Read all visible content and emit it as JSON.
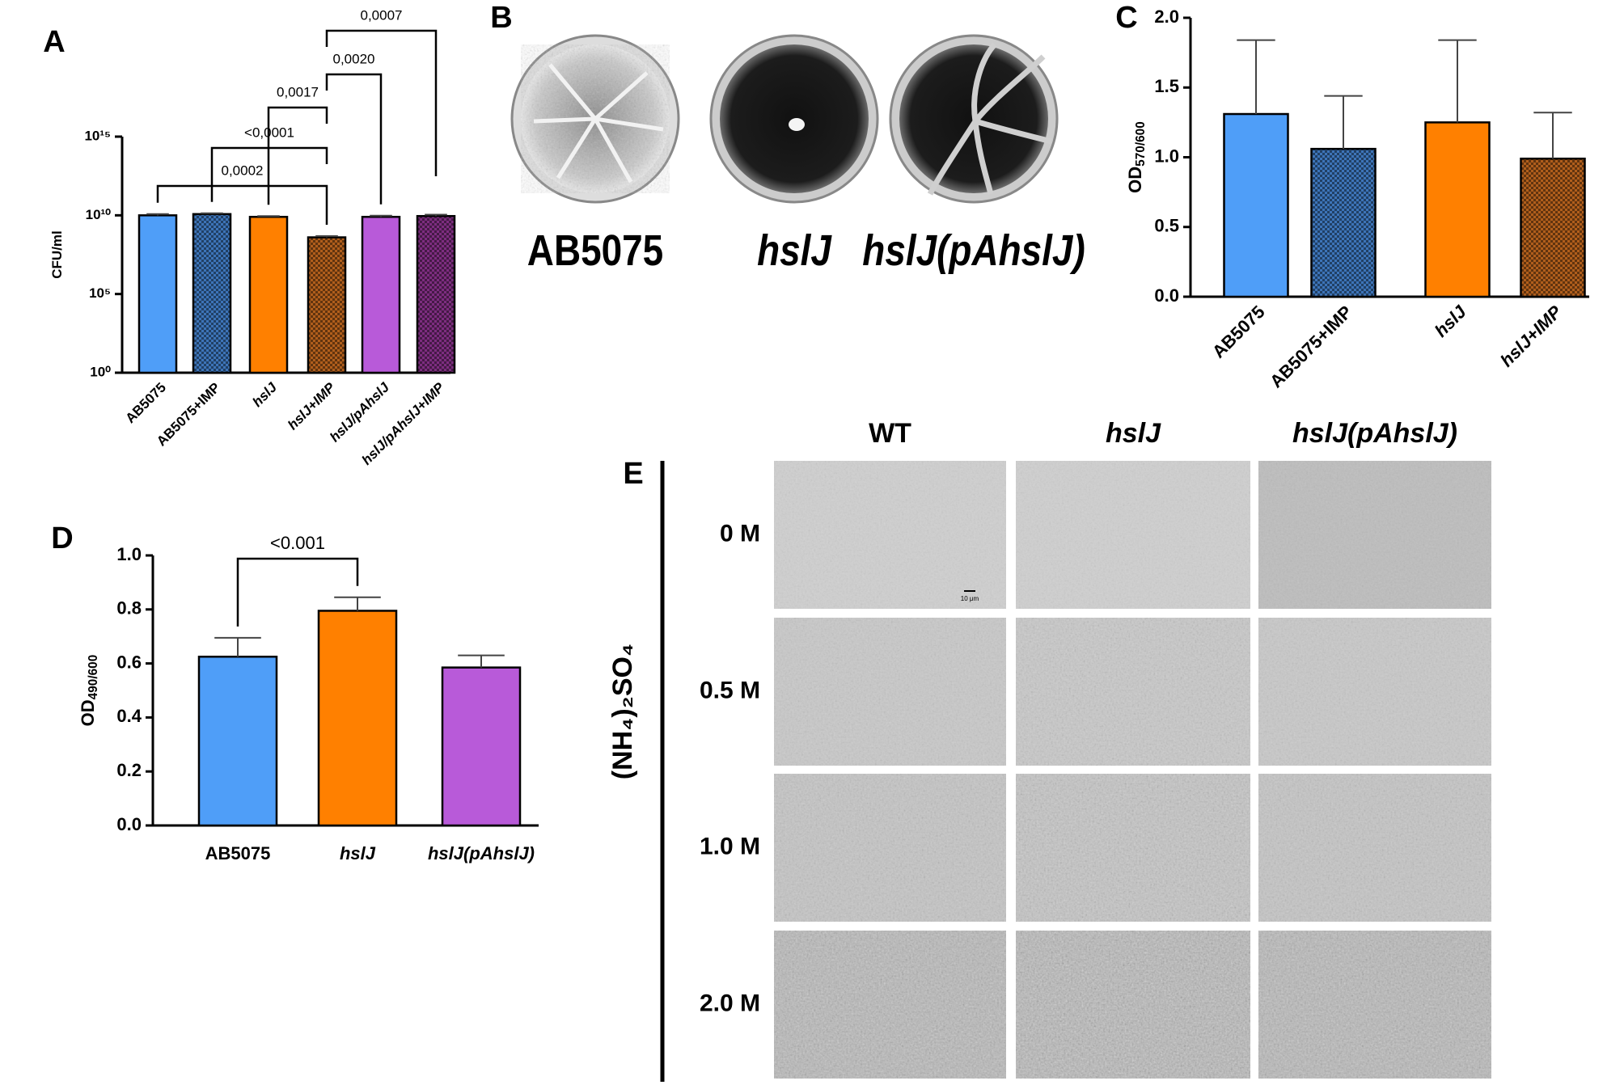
{
  "chart_data": [
    {
      "type": "bar",
      "panel": "A",
      "ylabel": "CFU/ml",
      "log_scale": true,
      "categories": [
        "AB5075",
        "AB5075+IMP",
        "hslJ",
        "hslJ+IMP",
        "hslJ/pAhslJ",
        "hslJ/pAhslJ+IMP"
      ],
      "values": [
        10000000000,
        12000000000,
        8000000000,
        400000000,
        8000000000,
        9000000000
      ],
      "errors": [
        2000000000,
        1500000000,
        1000000000,
        80000000,
        1500000000,
        2000000000
      ],
      "colors": [
        "#4f9ef8",
        "#3d74b8",
        "#ff8000",
        "#b05e1c",
        "#b85ad9",
        "#7d2d80"
      ],
      "hatched": [
        false,
        true,
        false,
        true,
        false,
        true
      ],
      "ylim": [
        1,
        1000000000000000
      ],
      "yticks": [
        {
          "value": 1,
          "label": "10⁰"
        },
        {
          "value": 100000,
          "label": "10⁵"
        },
        {
          "value": 10000000000,
          "label": "10¹⁰"
        },
        {
          "value": 1000000000000000,
          "label": "10¹⁵"
        }
      ],
      "significance": [
        "0,0002",
        "<0,0001",
        "0,0017",
        "0,0020",
        "0,0007"
      ]
    },
    {
      "type": "bar",
      "panel": "C",
      "ylabel": "OD",
      "ylabel_sub": "570/600",
      "log_scale": false,
      "categories": [
        "AB5075",
        "AB5075+IMP",
        "hslJ",
        "hslJ+IMP"
      ],
      "values": [
        1.31,
        1.06,
        1.25,
        0.99
      ],
      "errors": [
        0.53,
        0.38,
        0.59,
        0.33
      ],
      "colors": [
        "#4f9ef8",
        "#3d74b8",
        "#ff8000",
        "#b05e1c"
      ],
      "hatched": [
        false,
        true,
        false,
        true
      ],
      "ylim": [
        0,
        2
      ],
      "yticks": [
        {
          "value": 0,
          "label": "0.0"
        },
        0.5,
        {
          "value": 1,
          "label": "1.0"
        },
        1.5,
        {
          "value": 2,
          "label": "2.0"
        }
      ],
      "significance": []
    },
    {
      "type": "bar",
      "panel": "D",
      "ylabel": "OD",
      "ylabel_sub": "490/600",
      "log_scale": false,
      "categories": [
        "AB5075",
        "hslJ",
        "hslJ(pAhslJ)"
      ],
      "values": [
        0.625,
        0.795,
        0.585
      ],
      "errors": [
        0.07,
        0.05,
        0.045
      ],
      "colors": [
        "#4f9ef8",
        "#ff8000",
        "#b85ad9"
      ],
      "hatched": [
        false,
        false,
        false
      ],
      "ylim": [
        0,
        1
      ],
      "yticks": [
        {
          "value": 0,
          "label": "0.0"
        },
        0.2,
        0.4,
        0.6,
        0.8,
        {
          "value": 1,
          "label": "1.0"
        }
      ],
      "significance": [
        "<0.001"
      ]
    }
  ],
  "plates": {
    "panel": "B",
    "labels": [
      "AB5075",
      "hslJ",
      "hslJ(pAhslJ)"
    ]
  },
  "microscopy": {
    "panel": "E",
    "columns": [
      "WT",
      "hslJ",
      "hslJ(pAhslJ)"
    ],
    "rows": [
      "0 M",
      "0.5 M",
      "1.0 M",
      "2.0 M"
    ],
    "axis_label": "(NH₄)₂SO₄",
    "scale_bar": "10 μm"
  }
}
